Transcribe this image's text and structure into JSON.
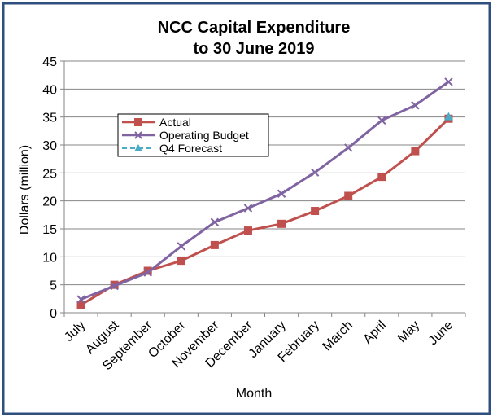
{
  "chart_data": {
    "type": "line",
    "title": [
      "NCC Capital Expenditure",
      "to 30 June 2019"
    ],
    "xlabel": "Month",
    "ylabel": "Dollars (million)",
    "ylim": [
      0,
      45
    ],
    "yticks": [
      0,
      5,
      10,
      15,
      20,
      25,
      30,
      35,
      40,
      45
    ],
    "grid": true,
    "legend_position": "upper-left",
    "categories": [
      "July",
      "August",
      "September",
      "October",
      "November",
      "December",
      "January",
      "February",
      "March",
      "April",
      "May",
      "June"
    ],
    "series": [
      {
        "name": "Actual",
        "color": "#c0504d",
        "marker": "square",
        "values": [
          1.4,
          5.0,
          7.5,
          9.3,
          12.1,
          14.7,
          15.9,
          18.2,
          20.9,
          24.3,
          28.9,
          34.7
        ]
      },
      {
        "name": "Operating Budget",
        "color": "#8064a2",
        "marker": "x",
        "values": [
          2.4,
          4.8,
          7.2,
          11.9,
          16.2,
          18.7,
          21.3,
          25.1,
          29.5,
          34.4,
          37.1,
          41.3
        ]
      },
      {
        "name": "Q4 Forecast",
        "color": "#4bacc6",
        "marker": "triangle",
        "dashed": true,
        "values": [
          null,
          null,
          null,
          null,
          null,
          null,
          null,
          null,
          null,
          null,
          null,
          35.0
        ]
      }
    ]
  }
}
